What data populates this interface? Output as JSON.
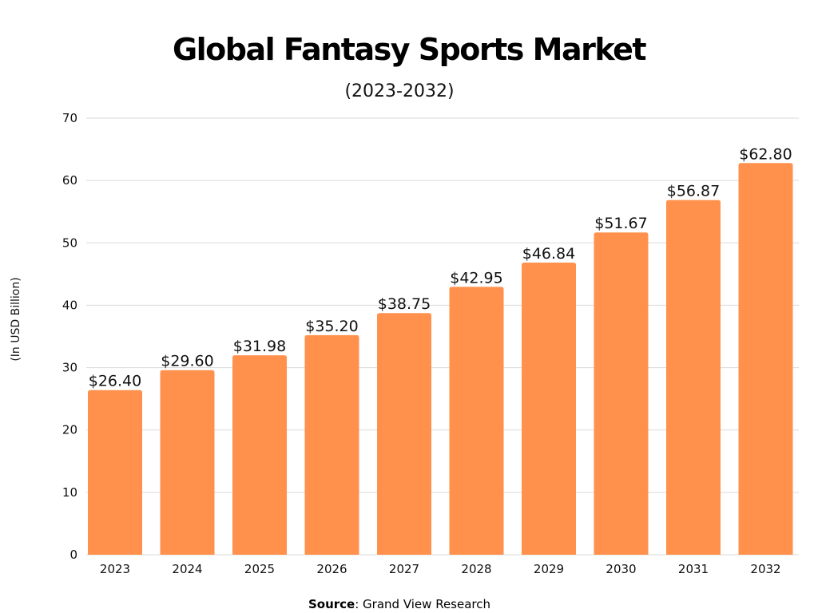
{
  "chart_data": {
    "type": "bar",
    "title": "Global Fantasy Sports Market",
    "subtitle": "(2023-2032)",
    "ylabel": "(In USD Billion)",
    "xlabel": "",
    "categories": [
      "2023",
      "2024",
      "2025",
      "2026",
      "2027",
      "2028",
      "2029",
      "2030",
      "2031",
      "2032"
    ],
    "values": [
      26.4,
      29.6,
      31.98,
      35.2,
      38.75,
      42.95,
      46.84,
      51.67,
      56.87,
      62.8
    ],
    "data_labels": [
      "$26.40",
      "$29.60",
      "$31.98",
      "$35.20",
      "$38.75",
      "$42.95",
      "$46.84",
      "$51.67",
      "$56.87",
      "$62.80"
    ],
    "ylim": [
      0,
      70
    ],
    "yticks": [
      "0",
      "10",
      "20",
      "30",
      "40",
      "50",
      "60",
      "70"
    ],
    "grid": true,
    "bar_color": "#FF914D",
    "source_label": "Source",
    "source_text": ": Grand View Research"
  }
}
